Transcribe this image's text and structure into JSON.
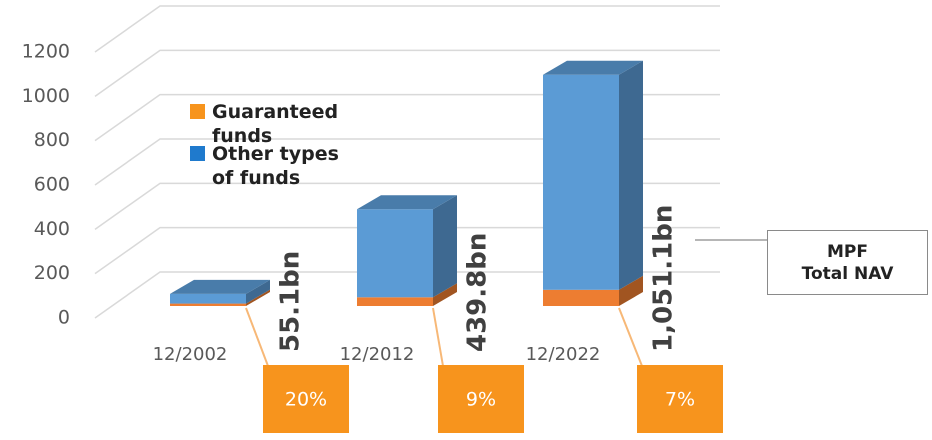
{
  "chart_data": {
    "type": "bar",
    "stacked": true,
    "categories": [
      "12/2002",
      "12/2012",
      "12/2022"
    ],
    "series": [
      {
        "name": "Guaranteed funds",
        "color": "#ed7d31",
        "values": [
          11.0,
          39.6,
          73.6
        ]
      },
      {
        "name": "Other types of funds",
        "color": "#5b9bd5",
        "values": [
          44.1,
          400.2,
          977.5
        ]
      }
    ],
    "legend_colors": [
      "#f7941d",
      "#1f7acd"
    ],
    "totals": {
      "values": [
        55.1,
        439.8,
        1051.1
      ],
      "value_labels": [
        "55.1bn",
        "439.8bn",
        "1,051.1bn"
      ]
    },
    "shares": {
      "values": [
        20,
        9,
        7
      ],
      "value_labels": [
        "20%",
        "9%",
        "7%"
      ],
      "color": "#f7941d"
    },
    "annotation": "MPF\nTotal NAV",
    "ylim": [
      0,
      1200
    ],
    "yticks": [
      0,
      200,
      400,
      600,
      800,
      1000,
      1200
    ],
    "grid": true
  }
}
